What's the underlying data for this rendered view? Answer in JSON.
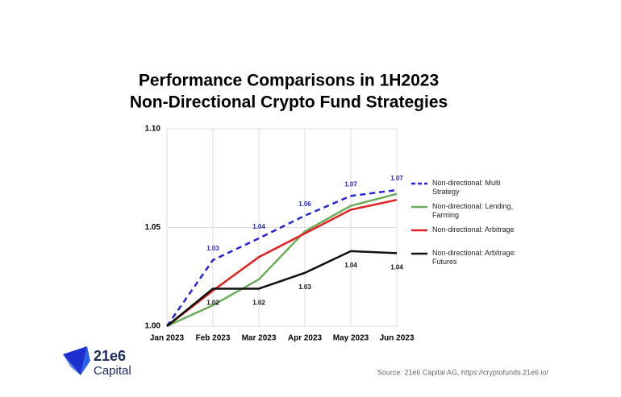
{
  "chart_data": {
    "type": "line",
    "title": "Performance Comparisons in 1H2023",
    "subtitle": "Non-Directional Crypto Fund Strategies",
    "categories": [
      "Jan 2023",
      "Feb 2023",
      "Mar 2023",
      "Apr 2023",
      "May 2023",
      "Jun 2023"
    ],
    "series": [
      {
        "name": "Non-directional: Multi Strategy",
        "color": "#2424d8",
        "dashed": true,
        "values": [
          1.0,
          1.0335,
          1.0445,
          1.056,
          1.066,
          1.069
        ],
        "value_labels": [
          null,
          "1.03",
          "1.04",
          "1.06",
          "1.07",
          "1.07"
        ],
        "label_position": "above"
      },
      {
        "name": "Non-directional: Lending, Farming",
        "color": "#6aac5a",
        "values": [
          1.0,
          1.0106,
          1.0237,
          1.048,
          1.061,
          1.067
        ]
      },
      {
        "name": "Non-directional: Arbitrage",
        "color": "#e32020",
        "values": [
          1.0,
          1.018,
          1.035,
          1.047,
          1.059,
          1.064
        ]
      },
      {
        "name": "Non-directional: Arbitrage: Futures",
        "color": "#111111",
        "values": [
          1.0,
          1.019,
          1.019,
          1.027,
          1.038,
          1.037
        ],
        "value_labels": [
          null,
          "1.02",
          "1.02",
          "1.03",
          "1.04",
          "1.04"
        ],
        "label_position": "below"
      }
    ],
    "ylim": [
      1.0,
      1.1
    ],
    "yticks": [
      {
        "value": 1.0,
        "label": "1.00"
      },
      {
        "value": 1.05,
        "label": "1.05"
      },
      {
        "value": 1.1,
        "label": "1.10"
      }
    ],
    "grid": true,
    "legend": "right"
  },
  "logo": {
    "name": "21e6",
    "tagline": "Capital"
  },
  "source": "Source: 21e6 Capital AG, https://cryptofunds.21e6.io/"
}
